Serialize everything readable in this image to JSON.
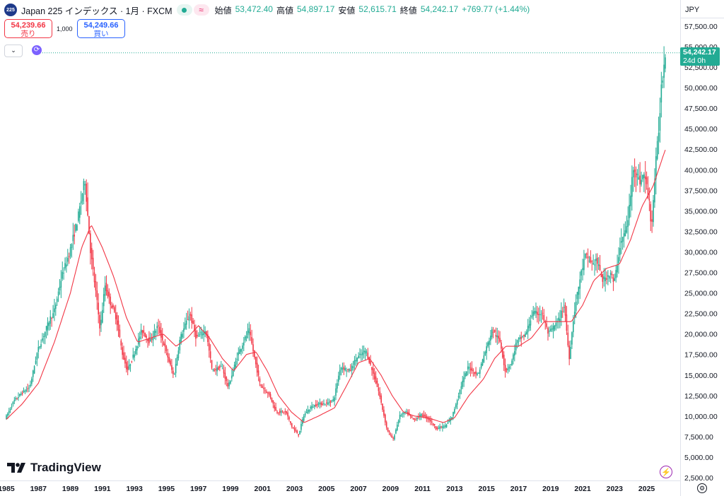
{
  "header": {
    "logo_text": "225",
    "symbol": "Japan 225 インデックス · 1月 · FXCM",
    "wave_glyph": "≈",
    "open_label": "始値",
    "open_value": "53,472.40",
    "high_label": "高値",
    "high_value": "54,897.17",
    "low_label": "安値",
    "low_value": "52,615.71",
    "close_label": "終値",
    "close_value": "54,242.17",
    "change": "+769.77 (+1.44%)"
  },
  "trade": {
    "sell_price": "54,239.66",
    "sell_label": "売り",
    "quantity": "1,000",
    "buy_price": "54,249.66",
    "buy_label": "買い"
  },
  "toolbar": {
    "chevron": "⌄",
    "refresh_glyph": "⟳"
  },
  "axis": {
    "currency": "JPY",
    "last_price": "54,242.17",
    "countdown": "24d 0h"
  },
  "branding": {
    "name": "TradingView"
  },
  "icons": {
    "bolt": "⚡",
    "gear": "⚙"
  },
  "colors": {
    "up": "#22ab94",
    "down": "#f23645",
    "ma": "#f23645",
    "accent": "#2962ff"
  },
  "chart_data": {
    "type": "candlestick-ohlc",
    "interval": "1M",
    "currency": "JPY",
    "ylim": [
      0,
      60000
    ],
    "y_ticks": [
      "2,500.00",
      "5,000.00",
      "7,500.00",
      "10,000.00",
      "12,500.00",
      "15,000.00",
      "17,500.00",
      "20,000.00",
      "22,500.00",
      "25,000.00",
      "27,500.00",
      "30,000.00",
      "32,500.00",
      "35,000.00",
      "37,500.00",
      "40,000.00",
      "42,500.00",
      "45,000.00",
      "47,500.00",
      "50,000.00",
      "52,500.00",
      "55,000.00",
      "57,500.00"
    ],
    "y_tick_values": [
      2500,
      5000,
      7500,
      10000,
      12500,
      15000,
      17500,
      20000,
      22500,
      25000,
      27500,
      30000,
      32500,
      35000,
      37500,
      40000,
      42500,
      45000,
      47500,
      50000,
      52500,
      55000,
      57500
    ],
    "x_ticks": [
      "1985",
      "1987",
      "1989",
      "1991",
      "1993",
      "1995",
      "1997",
      "1999",
      "2001",
      "2003",
      "2005",
      "2007",
      "2009",
      "2011",
      "2013",
      "2015",
      "2017",
      "2019",
      "2021",
      "2023",
      "2025"
    ],
    "x_tick_years": [
      1985,
      1987,
      1989,
      1991,
      1993,
      1995,
      1997,
      1999,
      2001,
      2003,
      2005,
      2007,
      2009,
      2011,
      2013,
      2015,
      2017,
      2019,
      2021,
      2023,
      2025
    ],
    "x_range": [
      1985.0,
      2026.5
    ],
    "price_anchors": [
      [
        1985.0,
        9800
      ],
      [
        1985.5,
        11800
      ],
      [
        1986.0,
        12800
      ],
      [
        1986.5,
        13500
      ],
      [
        1987.0,
        18000
      ],
      [
        1987.8,
        22000
      ],
      [
        1988.0,
        22500
      ],
      [
        1988.5,
        27000
      ],
      [
        1989.0,
        30000
      ],
      [
        1989.5,
        34000
      ],
      [
        1989.95,
        38900
      ],
      [
        1990.3,
        30000
      ],
      [
        1990.7,
        24000
      ],
      [
        1990.9,
        20500
      ],
      [
        1991.2,
        26000
      ],
      [
        1991.5,
        24000
      ],
      [
        1991.9,
        22000
      ],
      [
        1992.3,
        17500
      ],
      [
        1992.6,
        15500
      ],
      [
        1993.0,
        17500
      ],
      [
        1993.5,
        20500
      ],
      [
        1994.0,
        19000
      ],
      [
        1994.5,
        21000
      ],
      [
        1995.0,
        18000
      ],
      [
        1995.5,
        14800
      ],
      [
        1995.9,
        19500
      ],
      [
        1996.5,
        22500
      ],
      [
        1996.9,
        19500
      ],
      [
        1997.5,
        20500
      ],
      [
        1997.9,
        15500
      ],
      [
        1998.5,
        16000
      ],
      [
        1998.9,
        13500
      ],
      [
        1999.5,
        17500
      ],
      [
        2000.2,
        20500
      ],
      [
        2000.6,
        16500
      ],
      [
        2000.9,
        13800
      ],
      [
        2001.5,
        12500
      ],
      [
        2001.9,
        10500
      ],
      [
        2002.5,
        10500
      ],
      [
        2002.9,
        8600
      ],
      [
        2003.3,
        7700
      ],
      [
        2003.6,
        10000
      ],
      [
        2004.0,
        11000
      ],
      [
        2004.5,
        11500
      ],
      [
        2005.0,
        11500
      ],
      [
        2005.5,
        12000
      ],
      [
        2005.9,
        16000
      ],
      [
        2006.5,
        15500
      ],
      [
        2006.9,
        17000
      ],
      [
        2007.5,
        18000
      ],
      [
        2007.9,
        15500
      ],
      [
        2008.3,
        13000
      ],
      [
        2008.8,
        8500
      ],
      [
        2009.2,
        7100
      ],
      [
        2009.6,
        10000
      ],
      [
        2010.0,
        10500
      ],
      [
        2010.5,
        9500
      ],
      [
        2011.0,
        10200
      ],
      [
        2011.5,
        9500
      ],
      [
        2011.9,
        8500
      ],
      [
        2012.5,
        8800
      ],
      [
        2012.9,
        10000
      ],
      [
        2013.5,
        14000
      ],
      [
        2013.9,
        16000
      ],
      [
        2014.5,
        15000
      ],
      [
        2014.9,
        17500
      ],
      [
        2015.4,
        20500
      ],
      [
        2015.9,
        19000
      ],
      [
        2016.2,
        15500
      ],
      [
        2016.6,
        16500
      ],
      [
        2016.9,
        19000
      ],
      [
        2017.5,
        20000
      ],
      [
        2017.9,
        22500
      ],
      [
        2018.5,
        22500
      ],
      [
        2018.9,
        20000
      ],
      [
        2019.5,
        21500
      ],
      [
        2019.9,
        23500
      ],
      [
        2020.2,
        17000
      ],
      [
        2020.5,
        22500
      ],
      [
        2020.9,
        27000
      ],
      [
        2021.2,
        29500
      ],
      [
        2021.7,
        28500
      ],
      [
        2021.9,
        29000
      ],
      [
        2022.3,
        26500
      ],
      [
        2022.8,
        27500
      ],
      [
        2023.0,
        26000
      ],
      [
        2023.4,
        31000
      ],
      [
        2023.8,
        33000
      ],
      [
        2024.0,
        36000
      ],
      [
        2024.2,
        40500
      ],
      [
        2024.6,
        38500
      ],
      [
        2024.9,
        39500
      ],
      [
        2025.2,
        36000
      ],
      [
        2025.35,
        33000
      ],
      [
        2025.6,
        40500
      ],
      [
        2025.8,
        45000
      ],
      [
        2025.95,
        50000
      ],
      [
        2026.1,
        52500
      ],
      [
        2026.2,
        54242.17
      ]
    ],
    "ma_anchors": [
      [
        1985.0,
        9600
      ],
      [
        1986.0,
        11500
      ],
      [
        1987.0,
        14000
      ],
      [
        1988.0,
        19000
      ],
      [
        1989.0,
        25000
      ],
      [
        1989.7,
        30500
      ],
      [
        1990.3,
        33300
      ],
      [
        1991.0,
        30500
      ],
      [
        1991.7,
        27000
      ],
      [
        1992.5,
        22000
      ],
      [
        1993.2,
        19000
      ],
      [
        1994.0,
        19500
      ],
      [
        1994.8,
        20000
      ],
      [
        1995.6,
        18500
      ],
      [
        1996.3,
        19500
      ],
      [
        1997.0,
        21000
      ],
      [
        1997.7,
        19500
      ],
      [
        1998.5,
        17000
      ],
      [
        1999.2,
        15500
      ],
      [
        2000.0,
        17500
      ],
      [
        2000.6,
        17800
      ],
      [
        2001.3,
        15500
      ],
      [
        2002.0,
        12500
      ],
      [
        2002.8,
        10500
      ],
      [
        2003.6,
        9200
      ],
      [
        2004.5,
        10000
      ],
      [
        2005.5,
        11000
      ],
      [
        2006.2,
        13500
      ],
      [
        2007.0,
        16500
      ],
      [
        2007.7,
        17000
      ],
      [
        2008.4,
        15000
      ],
      [
        2009.1,
        12500
      ],
      [
        2009.8,
        10500
      ],
      [
        2010.5,
        10000
      ],
      [
        2011.3,
        9800
      ],
      [
        2012.3,
        9200
      ],
      [
        2013.0,
        9800
      ],
      [
        2013.9,
        12500
      ],
      [
        2014.8,
        14500
      ],
      [
        2015.5,
        17000
      ],
      [
        2016.2,
        18500
      ],
      [
        2017.0,
        18500
      ],
      [
        2017.8,
        19500
      ],
      [
        2018.6,
        21500
      ],
      [
        2019.5,
        21500
      ],
      [
        2020.3,
        21500
      ],
      [
        2021.0,
        23500
      ],
      [
        2021.7,
        26500
      ],
      [
        2022.5,
        28000
      ],
      [
        2023.3,
        28500
      ],
      [
        2024.0,
        31500
      ],
      [
        2024.7,
        35500
      ],
      [
        2025.4,
        38000
      ],
      [
        2026.0,
        41500
      ],
      [
        2026.2,
        42600
      ]
    ]
  }
}
